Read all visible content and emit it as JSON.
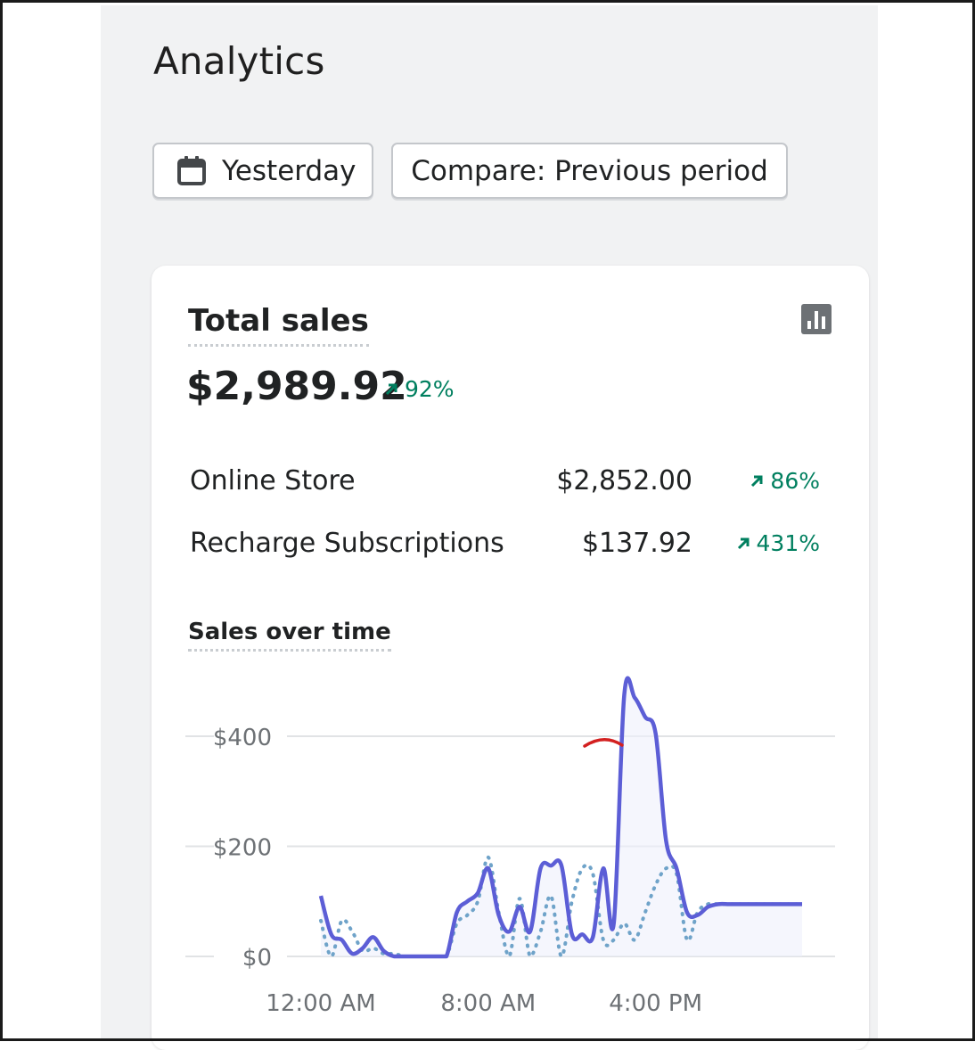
{
  "page": {
    "title": "Analytics"
  },
  "filters": {
    "date_label": "Yesterday",
    "compare_label": "Compare: Previous period"
  },
  "card": {
    "title": "Total sales",
    "total_value": "$2,989.92",
    "total_change": "92%",
    "breakdown": [
      {
        "label": "Online Store",
        "value": "$2,852.00",
        "change": "86%"
      },
      {
        "label": "Recharge Subscriptions",
        "value": "$137.92",
        "change": "431%"
      }
    ]
  },
  "colors": {
    "positive": "#007f5f",
    "current_series": "#5c5ed6",
    "previous_series": "#6fa3c9"
  },
  "chart_data": {
    "type": "line",
    "title": "Sales over time",
    "ylim": [
      0,
      450
    ],
    "y_ticks": [
      {
        "value": 0,
        "label": "$0"
      },
      {
        "value": 200,
        "label": "$200"
      },
      {
        "value": 400,
        "label": "$400"
      }
    ],
    "x_ticks": [
      {
        "hour": 0,
        "label": "12:00 AM"
      },
      {
        "hour": 8,
        "label": "8:00 AM"
      },
      {
        "hour": 16,
        "label": "4:00 PM"
      }
    ],
    "grid": true,
    "series": [
      {
        "style": "solid",
        "x": [
          0,
          0.5,
          1,
          1.5,
          2,
          2.5,
          3,
          3.5,
          4,
          4.5,
          5,
          5.5,
          6,
          6.5,
          7,
          7.5,
          8,
          8.5,
          9,
          9.5,
          10,
          10.5,
          11,
          11.5,
          12,
          12.5,
          13,
          13.5,
          14,
          14.5,
          15,
          15.5,
          16,
          16.5,
          17,
          17.5,
          18,
          18.5,
          19,
          19.5,
          20,
          20.5,
          21,
          21.5,
          22,
          22.5,
          23
        ],
        "values": [
          110,
          40,
          30,
          5,
          15,
          35,
          10,
          0,
          0,
          0,
          0,
          0,
          0,
          80,
          100,
          115,
          160,
          75,
          45,
          90,
          45,
          160,
          165,
          165,
          40,
          40,
          35,
          160,
          60,
          475,
          470,
          435,
          405,
          210,
          160,
          80,
          75,
          90,
          95,
          95,
          95,
          95,
          95,
          95,
          95,
          95,
          95
        ]
      },
      {
        "style": "dotted",
        "x": [
          0,
          0.5,
          1,
          1.5,
          2,
          2.5,
          3,
          3.5,
          4,
          4.5,
          5,
          5.5,
          6,
          6.5,
          7,
          7.5,
          8,
          8.5,
          9,
          9.5,
          10,
          10.5,
          11,
          11.5,
          12,
          12.5,
          13,
          13.5,
          14,
          14.5,
          15,
          15.5,
          16,
          16.5,
          17,
          17.5,
          18,
          18.5,
          19,
          19.5,
          20,
          20.5,
          21,
          21.5,
          22,
          22.5,
          23
        ],
        "values": [
          65,
          0,
          65,
          45,
          10,
          15,
          5,
          5,
          0,
          0,
          0,
          0,
          0,
          60,
          75,
          100,
          180,
          80,
          0,
          105,
          0,
          45,
          110,
          0,
          100,
          160,
          150,
          30,
          30,
          60,
          30,
          80,
          130,
          160,
          150,
          30,
          80,
          95,
          95,
          95,
          95,
          95,
          95,
          95,
          95,
          95,
          95
        ]
      }
    ]
  }
}
